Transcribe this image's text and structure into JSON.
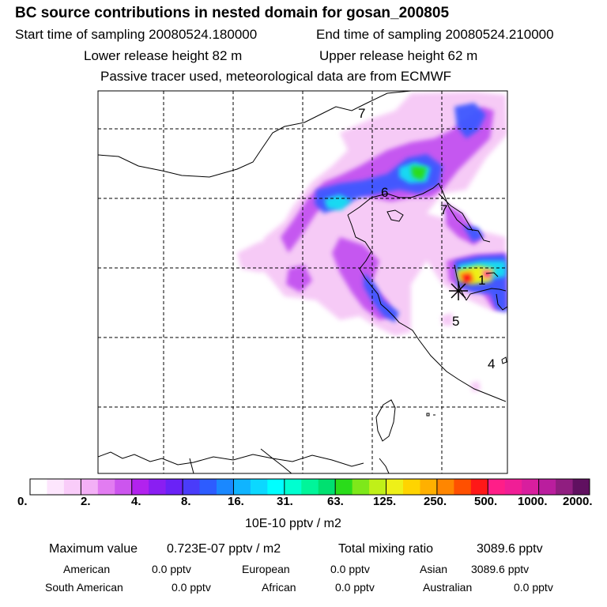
{
  "header": {
    "title": "BC  source contributions in nested domain for gosan_200805",
    "start_label": "Start time of sampling 20080524.180000",
    "end_label": "End time of sampling 20080524.210000",
    "lower_release": "Lower release height   82 m",
    "upper_release": "Upper release height   62 m",
    "tracer_note": "Passive tracer used, meteorological data are from ECMWF"
  },
  "map": {
    "region_labels": [
      "7",
      "6",
      "7",
      "1",
      "5",
      "4"
    ],
    "receptor_marker": "star"
  },
  "colorbar": {
    "tick_labels": [
      "0.",
      "2.",
      "4.",
      "8.",
      "16.",
      "31.",
      "63.",
      "125.",
      "250.",
      "500.",
      "1000.",
      "2000."
    ],
    "units": "10E-10 pptv / m2",
    "colors": [
      "#ffffff",
      "#fde6fd",
      "#f9ccf9",
      "#f3b0f6",
      "#e27cf1",
      "#cc55ee",
      "#b222ee",
      "#8a1ef2",
      "#6a22f6",
      "#4a3cfa",
      "#2d5cff",
      "#1a88ff",
      "#10b4ff",
      "#0cd8ff",
      "#00ffff",
      "#00ffd0",
      "#00f59a",
      "#00e070",
      "#2adc1a",
      "#7ee81a",
      "#c0f018",
      "#eef018",
      "#ffd400",
      "#ffb000",
      "#ff8600",
      "#ff5000",
      "#ff1818",
      "#ff1e88",
      "#f01e96",
      "#d81e9e",
      "#ba1e9e",
      "#901e80",
      "#601060"
    ]
  },
  "stats": {
    "max_value_label": "Maximum value",
    "max_value": "0.723E-07 pptv / m2",
    "total_label": "Total mixing ratio",
    "total_value": "3089.6 pptv",
    "regions": [
      {
        "name": "American",
        "value": "0.0 pptv"
      },
      {
        "name": "European",
        "value": "0.0 pptv"
      },
      {
        "name": "Asian",
        "value": "3089.6 pptv"
      },
      {
        "name": "South American",
        "value": "0.0 pptv"
      },
      {
        "name": "African",
        "value": "0.0 pptv"
      },
      {
        "name": "Australian",
        "value": "0.0 pptv"
      }
    ]
  }
}
